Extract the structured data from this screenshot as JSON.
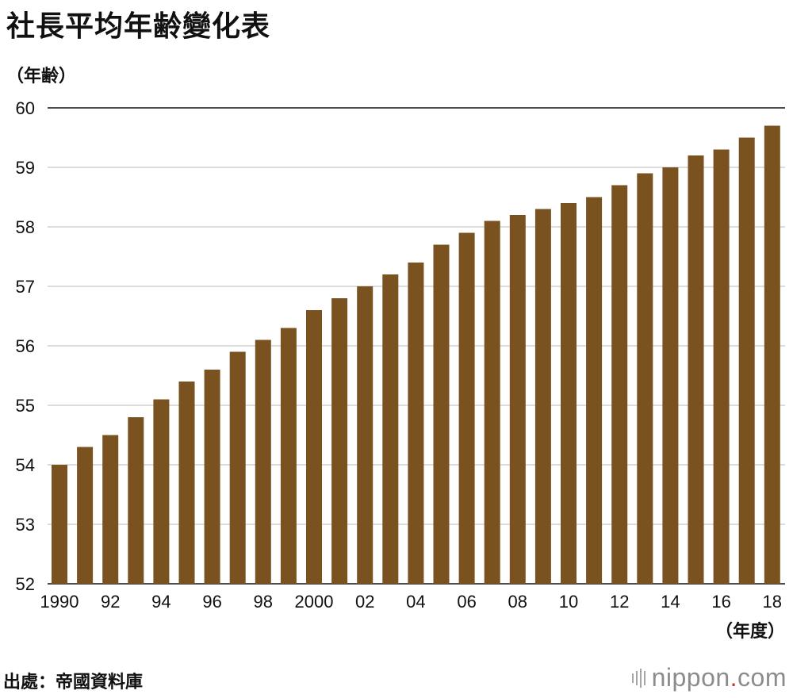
{
  "title": "社長平均年齢變化表",
  "source": "出處：帝國資料庫",
  "logo": {
    "name": "nippon",
    "dot": ".",
    "tld": "com"
  },
  "colors": {
    "bar": "#7a5220",
    "grid": "#c8c8c8",
    "axis": "#111111"
  },
  "chart_data": {
    "type": "bar",
    "title": "社長平均年齢變化表",
    "ylabel": "（年齢）",
    "xlabel": "（年度）",
    "categories": [
      "1990",
      "1991",
      "1992",
      "1993",
      "1994",
      "1995",
      "1996",
      "1997",
      "1998",
      "1999",
      "2000",
      "2001",
      "2002",
      "2003",
      "2004",
      "2005",
      "2006",
      "2007",
      "2008",
      "2009",
      "2010",
      "2011",
      "2012",
      "2013",
      "2014",
      "2015",
      "2016",
      "2017",
      "2018"
    ],
    "values": [
      54.0,
      54.3,
      54.5,
      54.8,
      55.1,
      55.4,
      55.6,
      55.9,
      56.1,
      56.3,
      56.6,
      56.8,
      57.0,
      57.2,
      57.4,
      57.7,
      57.9,
      58.1,
      58.2,
      58.3,
      58.4,
      58.5,
      58.7,
      58.9,
      59.0,
      59.2,
      59.3,
      59.5,
      59.7
    ],
    "ylim": [
      52,
      60
    ],
    "yticks": [
      "52",
      "53",
      "54",
      "55",
      "56",
      "57",
      "58",
      "59",
      "60"
    ],
    "xtick_labels": [
      "1990",
      "",
      "92",
      "",
      "94",
      "",
      "96",
      "",
      "98",
      "",
      "2000",
      "",
      "02",
      "",
      "04",
      "",
      "06",
      "",
      "08",
      "",
      "10",
      "",
      "12",
      "",
      "14",
      "",
      "16",
      "",
      "18"
    ],
    "grid": true,
    "legend": "none"
  }
}
